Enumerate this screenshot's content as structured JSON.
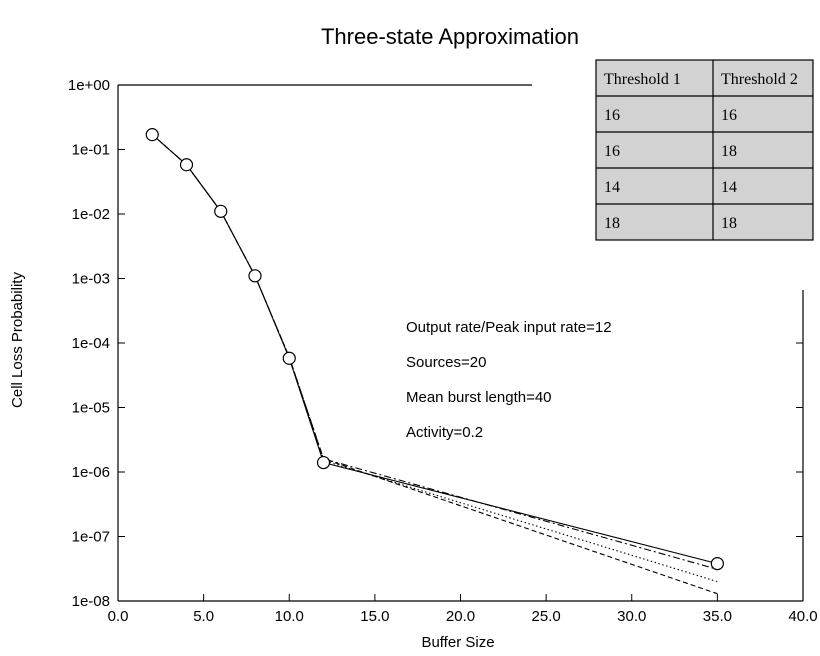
{
  "chart_data": {
    "type": "line",
    "title": "Three-state Approximation",
    "xlabel": "Buffer Size",
    "ylabel": "Cell Loss Probability",
    "xlim": [
      0,
      40
    ],
    "ylim_exponent": [
      -8,
      0
    ],
    "yscale": "log",
    "x_ticks": [
      "0.0",
      "5.0",
      "10.0",
      "15.0",
      "20.0",
      "25.0",
      "30.0",
      "35.0",
      "40.0"
    ],
    "y_ticks": [
      "1e+00",
      "1e-01",
      "1e-02",
      "1e-03",
      "1e-04",
      "1e-05",
      "1e-06",
      "1e-07",
      "1e-08"
    ],
    "grid": false,
    "measured": {
      "marker": "circle",
      "x": [
        2,
        4,
        6,
        8,
        10,
        12,
        35
      ],
      "y": [
        0.17,
        0.058,
        0.011,
        0.0011,
        5.8e-05,
        1.4e-06,
        3.8e-08
      ]
    },
    "series": [
      {
        "dash": "solid",
        "x": [
          2,
          4,
          6,
          8,
          10,
          12,
          35
        ],
        "y": [
          0.17,
          0.058,
          0.011,
          0.0011,
          5.8e-05,
          1.4e-06,
          3.8e-08
        ]
      },
      {
        "dash": "dashdot",
        "x": [
          2,
          4,
          6,
          8,
          10,
          12,
          35
        ],
        "y": [
          0.17,
          0.058,
          0.011,
          0.0011,
          6e-05,
          1.6e-06,
          3.1e-08
        ]
      },
      {
        "dash": "dashed",
        "x": [
          2,
          4,
          6,
          8,
          10,
          12,
          35
        ],
        "y": [
          0.17,
          0.058,
          0.011,
          0.0011,
          6e-05,
          1.6e-06,
          1.3e-08
        ]
      },
      {
        "dash": "dotted",
        "x": [
          2,
          4,
          6,
          8,
          10,
          12,
          35
        ],
        "y": [
          0.17,
          0.058,
          0.011,
          0.0011,
          6e-05,
          1.5e-06,
          2e-08
        ]
      }
    ],
    "annotations": [
      "Output rate/Peak input rate=12",
      "Sources=20",
      "Mean burst length=40",
      "Activity=0.2"
    ],
    "legend_table": {
      "placement": "top-right",
      "headers": [
        "Threshold 1",
        "Threshold 2"
      ],
      "rows": [
        [
          "16",
          "16"
        ],
        [
          "16",
          "18"
        ],
        [
          "14",
          "14"
        ],
        [
          "18",
          "18"
        ]
      ]
    },
    "colors": {
      "line": "#000000",
      "table_fill": "#d2d2d2",
      "background": "#ffffff"
    }
  }
}
